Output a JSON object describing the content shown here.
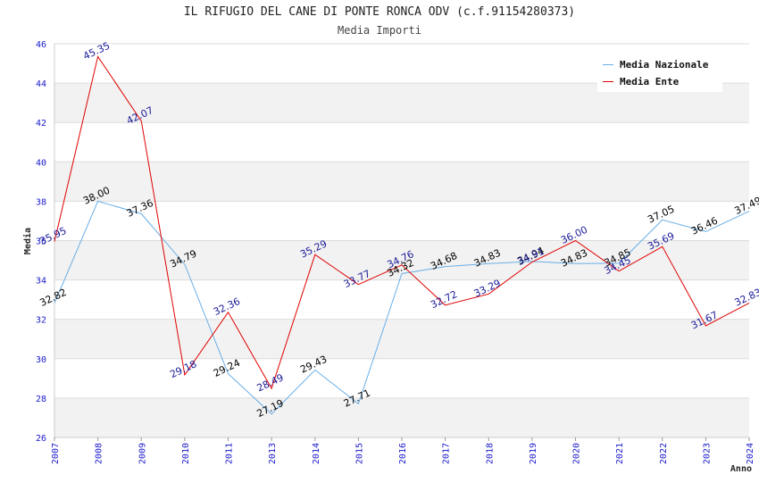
{
  "title": "IL RIFUGIO DEL CANE DI PONTE RONCA ODV (c.f.91154280373)",
  "subtitle": "Media Importi",
  "chart_data": {
    "type": "line",
    "title": "IL RIFUGIO DEL CANE DI PONTE RONCA ODV (c.f.91154280373)",
    "subtitle": "Media Importi",
    "xlabel": "Anno",
    "ylabel": "Media",
    "x": [
      2007,
      2008,
      2009,
      2010,
      2011,
      2013,
      2014,
      2015,
      2016,
      2017,
      2018,
      2019,
      2020,
      2021,
      2022,
      2023,
      2024
    ],
    "ylim": [
      26,
      46
    ],
    "yticks": [
      26,
      28,
      30,
      32,
      34,
      36,
      38,
      40,
      42,
      44,
      46
    ],
    "grid": true,
    "legend_position": "top-right",
    "series": [
      {
        "name": "Media Nazionale",
        "color": "#6aaee6",
        "label_color": "#000000",
        "values": [
          32.82,
          38.0,
          37.36,
          34.79,
          29.24,
          27.19,
          29.43,
          27.71,
          34.32,
          34.68,
          34.83,
          34.94,
          34.83,
          34.85,
          37.05,
          36.46,
          37.49
        ],
        "labels": [
          "32.82",
          "38.00",
          "37.36",
          "34.79",
          "29.24",
          "27.19",
          "29.43",
          "27.71",
          "34.32",
          "34.68",
          "34.83",
          "34.94",
          "34.83",
          "34.85",
          "37.05",
          "36.46",
          "37.49"
        ]
      },
      {
        "name": "Media Ente",
        "color": "#e00000",
        "label_color": "#1a1a99",
        "values": [
          35.95,
          45.35,
          42.07,
          29.18,
          32.36,
          28.49,
          35.29,
          33.77,
          34.76,
          32.72,
          33.29,
          34.91,
          36.0,
          34.45,
          35.69,
          31.67,
          32.83
        ],
        "labels": [
          "35.95",
          "45.35",
          "42.07",
          "29.18",
          "32.36",
          "28.49",
          "35.29",
          "33.77",
          "34.76",
          "32.72",
          "33.29",
          "34.91",
          "36.00",
          "34.45",
          "35.69",
          "31.67",
          "32.83"
        ]
      }
    ]
  }
}
